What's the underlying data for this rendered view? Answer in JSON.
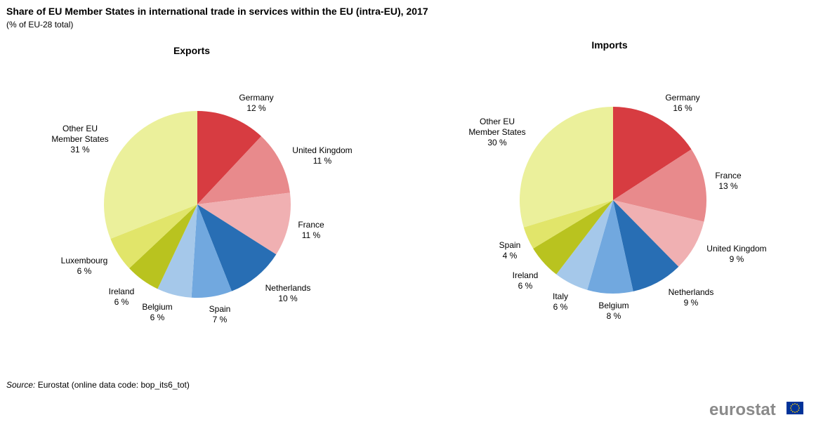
{
  "title": "Share of EU Member States in international trade in services within the EU (intra-EU), 2017",
  "subtitle": "(% of EU-28 total)",
  "source": {
    "label": "Source:",
    "text": " Eurostat (online data code: bop_its6_tot)"
  },
  "logo": {
    "text": "eurostat"
  },
  "chart_data": [
    {
      "type": "pie",
      "title": "Exports",
      "unit": "%",
      "slices": [
        {
          "label": "Germany",
          "value": 12,
          "value_label": "12 %",
          "color": "#d73c41"
        },
        {
          "label": "United Kingdom",
          "value": 11,
          "value_label": "11 %",
          "color": "#e88a8c"
        },
        {
          "label": "France",
          "value": 11,
          "value_label": "11 %",
          "color": "#f0b0b2"
        },
        {
          "label": "Netherlands",
          "value": 10,
          "value_label": "10 %",
          "color": "#286eb4"
        },
        {
          "label": "Spain",
          "value": 7,
          "value_label": "7 %",
          "color": "#71a8df"
        },
        {
          "label": "Belgium",
          "value": 6,
          "value_label": "6 %",
          "color": "#a5c8ea"
        },
        {
          "label": "Ireland",
          "value": 6,
          "value_label": "6 %",
          "color": "#b9c31f"
        },
        {
          "label": "Luxembourg",
          "value": 6,
          "value_label": "6 %",
          "color": "#e1e56a"
        },
        {
          "label": "Other EU Member States",
          "value": 31,
          "value_label": "31 %",
          "color": "#ebf09b"
        }
      ]
    },
    {
      "type": "pie",
      "title": "Imports",
      "unit": "%",
      "slices": [
        {
          "label": "Germany",
          "value": 16,
          "value_label": "16 %",
          "color": "#d73c41"
        },
        {
          "label": "France",
          "value": 13,
          "value_label": "13 %",
          "color": "#e88a8c"
        },
        {
          "label": "United Kingdom",
          "value": 9,
          "value_label": "9 %",
          "color": "#f0b0b2"
        },
        {
          "label": "Netherlands",
          "value": 9,
          "value_label": "9 %",
          "color": "#286eb4"
        },
        {
          "label": "Belgium",
          "value": 8,
          "value_label": "8 %",
          "color": "#71a8df"
        },
        {
          "label": "Italy",
          "value": 6,
          "value_label": "6 %",
          "color": "#a5c8ea"
        },
        {
          "label": "Ireland",
          "value": 6,
          "value_label": "6 %",
          "color": "#b9c31f"
        },
        {
          "label": "Spain",
          "value": 4,
          "value_label": "4 %",
          "color": "#e1e56a"
        },
        {
          "label": "Other EU Member States",
          "value": 30,
          "value_label": "30 %",
          "color": "#ebf09b"
        }
      ]
    }
  ]
}
